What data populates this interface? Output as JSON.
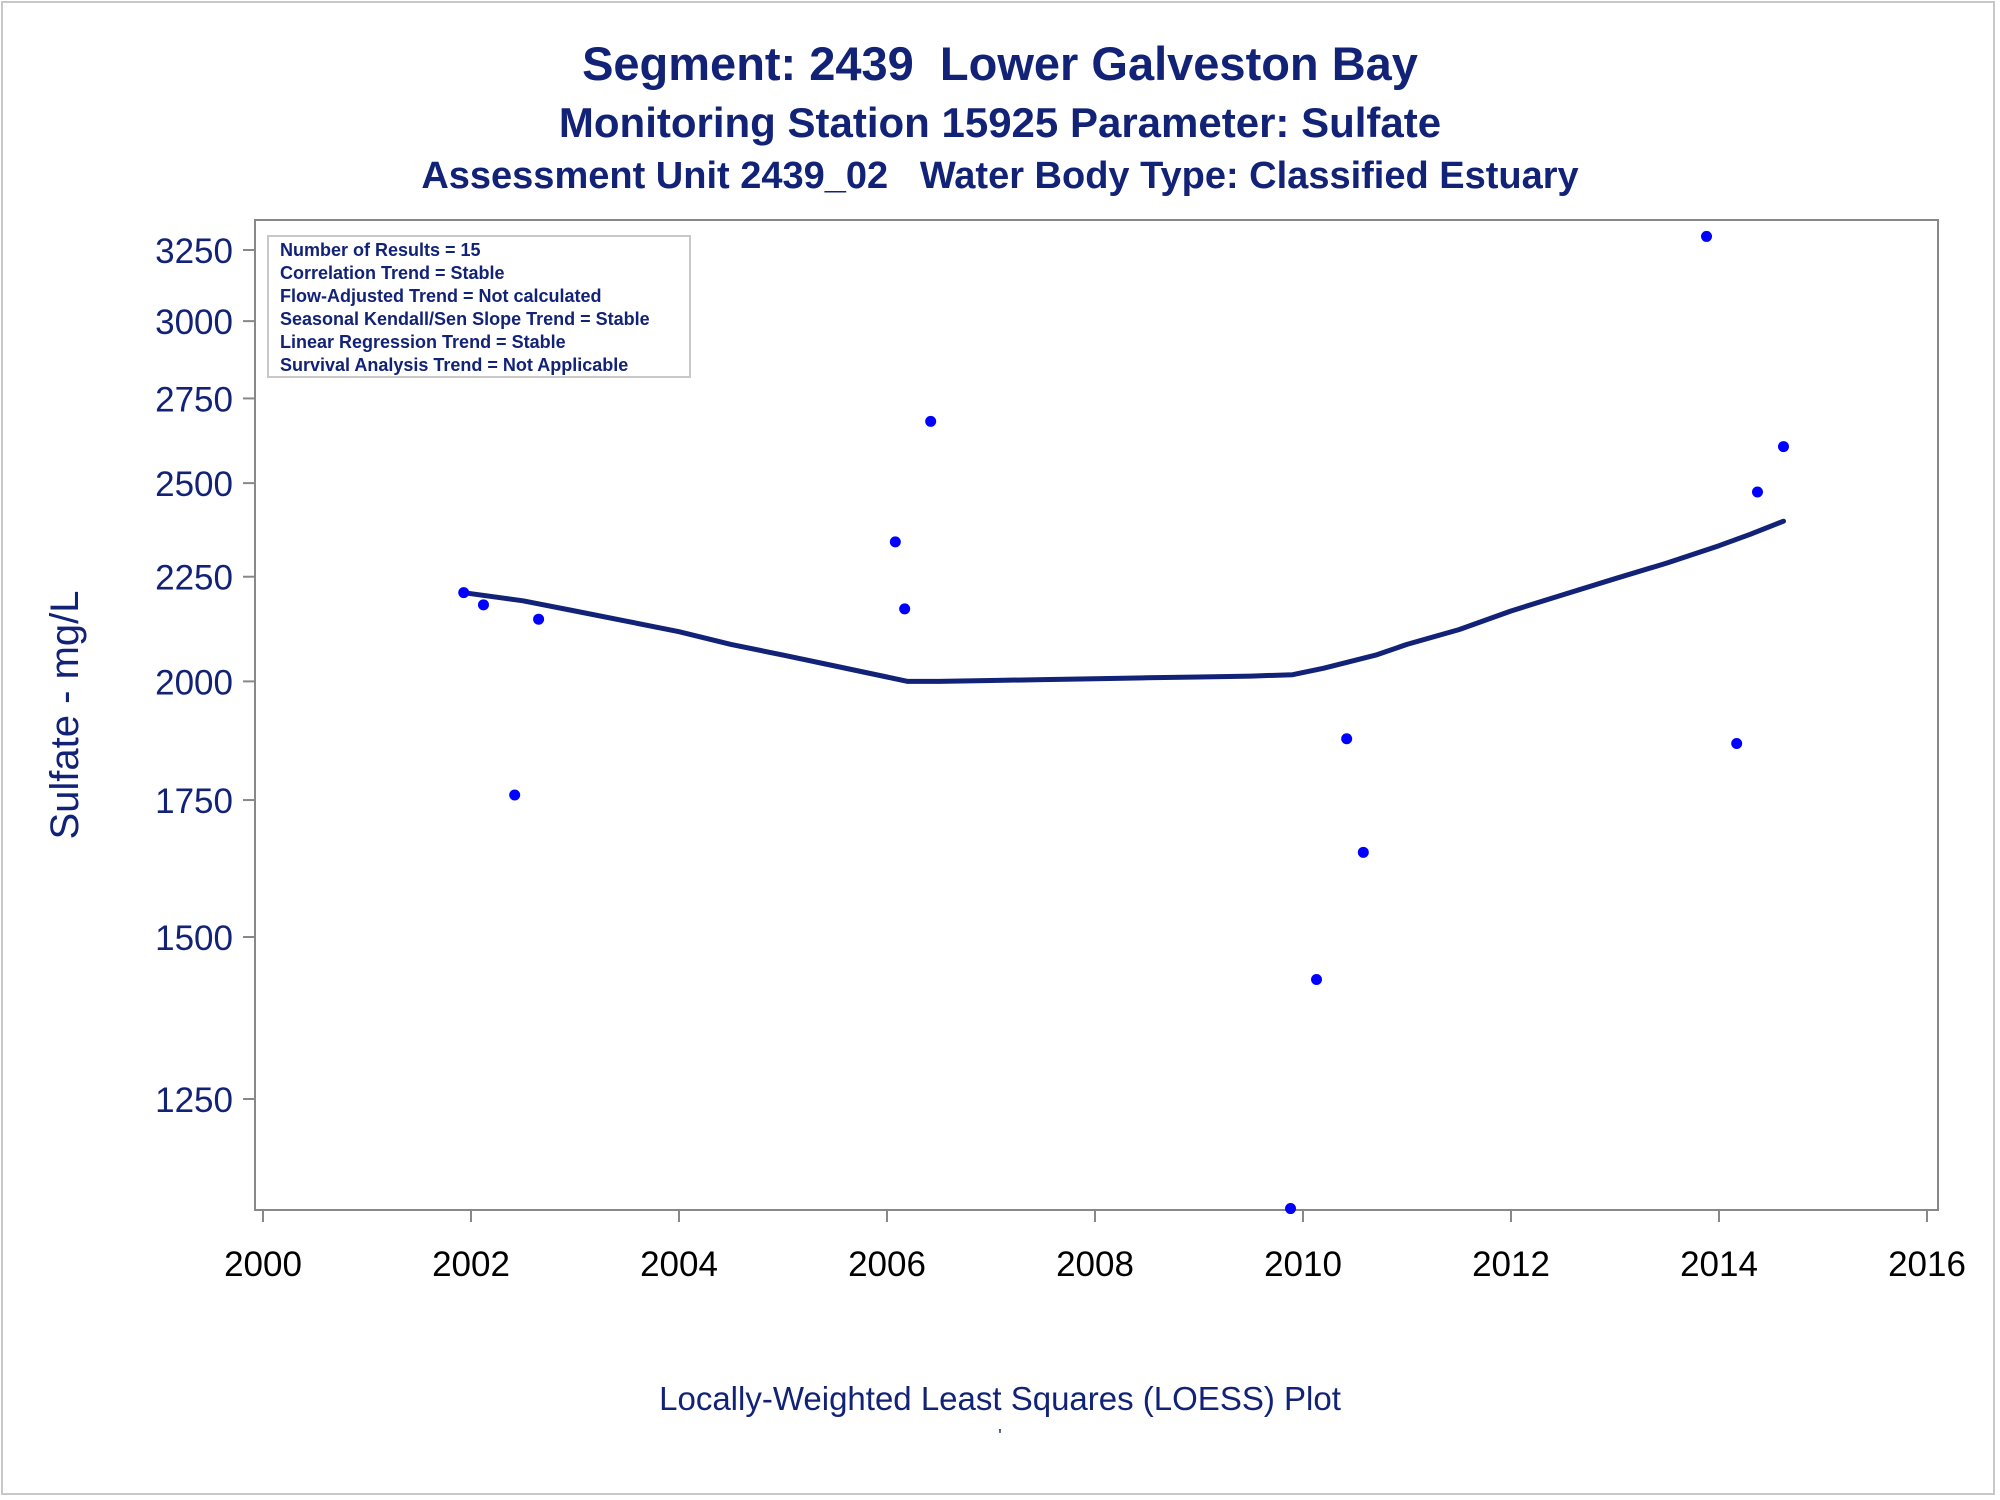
{
  "chart_data": {
    "type": "scatter",
    "title": "Segment: 2439  Lower Galveston Bay",
    "subtitle": "Monitoring Station 15925 Parameter: Sulfate",
    "subtitle2": "Assessment Unit 2439_02   Water Body Type: Classified Estuary",
    "ylabel": "Sulfate - mg/L",
    "xlabel": "",
    "footnote": "Locally-Weighted Least Squares (LOESS) Plot",
    "footnote2": "'",
    "xlim": [
      2000,
      2016
    ],
    "ylim": [
      1100,
      3300
    ],
    "y_scale": "log",
    "xticks": [
      2000,
      2002,
      2004,
      2006,
      2008,
      2010,
      2012,
      2014,
      2016
    ],
    "yticks": [
      1250,
      1500,
      1750,
      2000,
      2250,
      2500,
      2750,
      3000,
      3250
    ],
    "grid": false,
    "colors": {
      "points": "#0000ff",
      "loess_line": "#112277",
      "text": "#112277",
      "axis": "#888888"
    },
    "info_box": {
      "placement": "top-left",
      "lines": [
        "Number of Results = 15",
        "Correlation Trend = Stable",
        "Flow-Adjusted Trend = Not calculated",
        "Seasonal Kendall/Sen Slope Trend = Stable",
        "Linear Regression Trend = Stable",
        "Survival Analysis Trend = Not Applicable"
      ]
    },
    "series": [
      {
        "type": "scatter",
        "points": [
          [
            2001.93,
            2210
          ],
          [
            2002.12,
            2180
          ],
          [
            2002.42,
            1760
          ],
          [
            2002.65,
            2145
          ],
          [
            2006.08,
            2340
          ],
          [
            2006.17,
            2170
          ],
          [
            2006.42,
            2680
          ],
          [
            2009.88,
            1105
          ],
          [
            2010.13,
            1430
          ],
          [
            2010.42,
            1875
          ],
          [
            2010.58,
            1650
          ],
          [
            2013.88,
            3300
          ],
          [
            2014.17,
            1865
          ],
          [
            2014.37,
            2475
          ],
          [
            2014.62,
            2605
          ]
        ]
      },
      {
        "type": "line",
        "points": [
          [
            2001.93,
            2210
          ],
          [
            2002.5,
            2190
          ],
          [
            2003,
            2165
          ],
          [
            2003.5,
            2140
          ],
          [
            2004,
            2115
          ],
          [
            2004.5,
            2085
          ],
          [
            2005,
            2060
          ],
          [
            2005.5,
            2035
          ],
          [
            2006,
            2010
          ],
          [
            2006.2,
            2000
          ],
          [
            2006.5,
            2000
          ],
          [
            2007,
            2002
          ],
          [
            2007.5,
            2004
          ],
          [
            2008,
            2006
          ],
          [
            2008.5,
            2008
          ],
          [
            2009,
            2010
          ],
          [
            2009.5,
            2012
          ],
          [
            2009.9,
            2015
          ],
          [
            2010.2,
            2030
          ],
          [
            2010.7,
            2060
          ],
          [
            2011,
            2085
          ],
          [
            2011.5,
            2120
          ],
          [
            2012,
            2165
          ],
          [
            2012.5,
            2205
          ],
          [
            2013,
            2245
          ],
          [
            2013.5,
            2285
          ],
          [
            2014,
            2330
          ],
          [
            2014.3,
            2360
          ],
          [
            2014.62,
            2395
          ]
        ]
      }
    ]
  }
}
